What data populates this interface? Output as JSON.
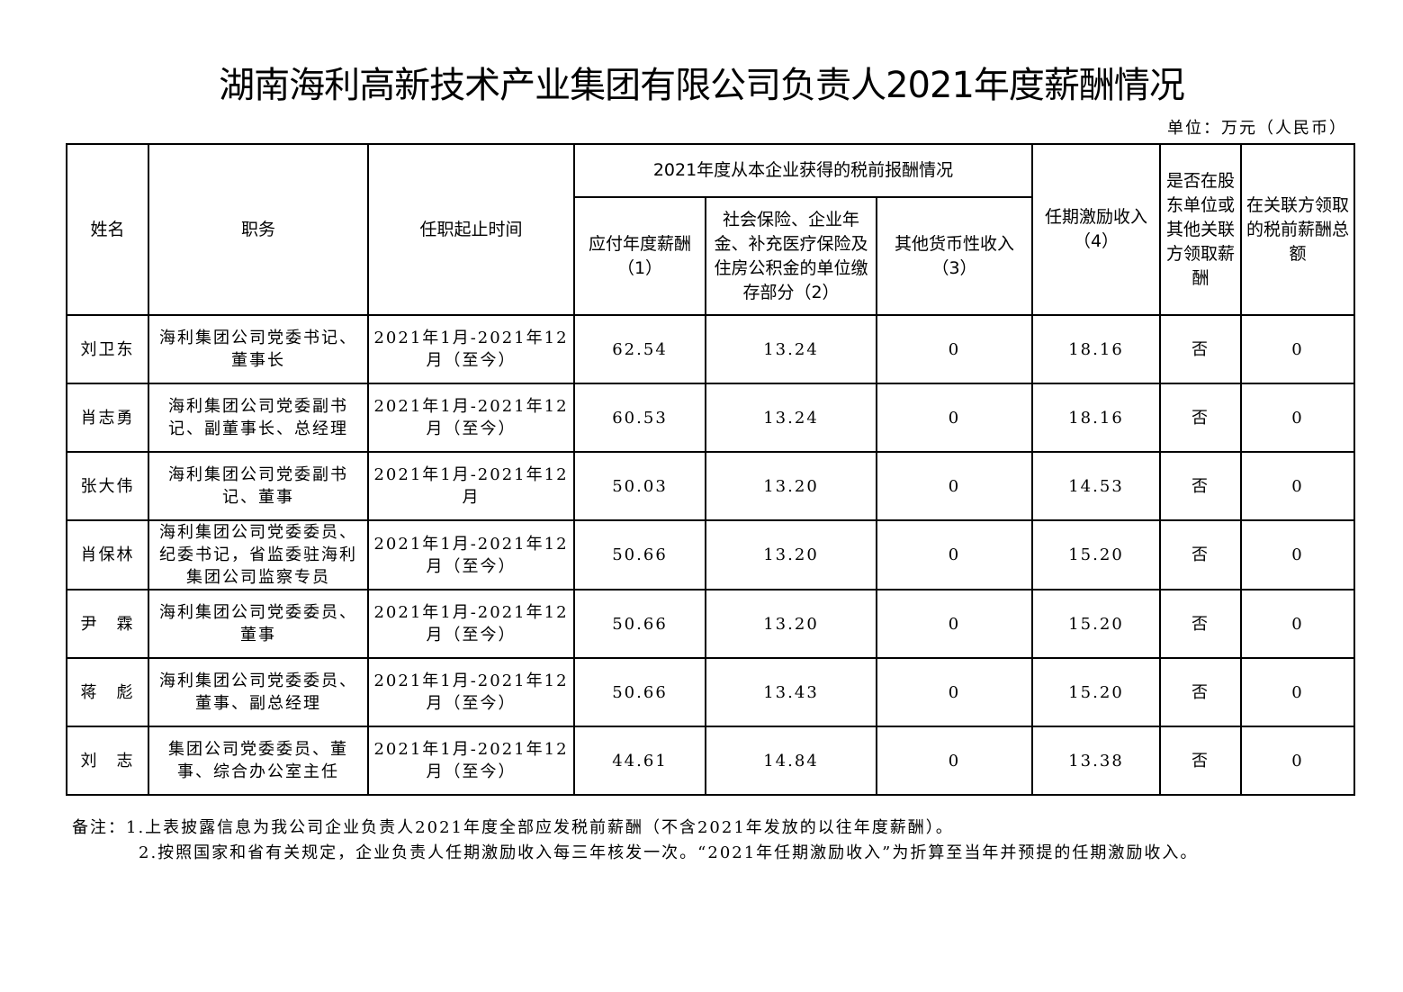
{
  "title": "湖南海利高新技术产业集团有限公司负责人2021年度薪酬情况",
  "unit": "单位：万元（人民币）",
  "headers": {
    "name": "姓名",
    "position": "职务",
    "term": "任职起止时间",
    "group": "2021年度从本企业获得的税前报酬情况",
    "salary": "应付年度薪酬（1）",
    "insurance": "社会保险、企业年金、补充医疗保险及住房公积金的单位缴存部分（2）",
    "other": "其他货币性收入（3）",
    "incentive": "任期激励收入（4）",
    "shareholder": "是否在股东单位或其他关联方领取薪酬",
    "related": "在关联方领取的税前薪酬总额"
  },
  "rows": [
    {
      "name": "刘卫东",
      "position": "海利集团公司党委书记、董事长",
      "term": "2021年1月-2021年12月（至今）",
      "salary": "62.54",
      "insurance": "13.24",
      "other": "0",
      "incentive": "18.16",
      "shareholder": "否",
      "related": "0"
    },
    {
      "name": "肖志勇",
      "position": "海利集团公司党委副书记、副董事长、总经理",
      "term": "2021年1月-2021年12月（至今）",
      "salary": "60.53",
      "insurance": "13.24",
      "other": "0",
      "incentive": "18.16",
      "shareholder": "否",
      "related": "0"
    },
    {
      "name": "张大伟",
      "position": "海利集团公司党委副书记、董事",
      "term": "2021年1月-2021年12月",
      "salary": "50.03",
      "insurance": "13.20",
      "other": "0",
      "incentive": "14.53",
      "shareholder": "否",
      "related": "0"
    },
    {
      "name": "肖保林",
      "position": "海利集团公司党委委员、纪委书记，省监委驻海利集团公司监察专员",
      "term": "2021年1月-2021年12月（至今）",
      "salary": "50.66",
      "insurance": "13.20",
      "other": "0",
      "incentive": "15.20",
      "shareholder": "否",
      "related": "0"
    },
    {
      "name": "尹　霖",
      "position": "海利集团公司党委委员、董事",
      "term": "2021年1月-2021年12月（至今）",
      "salary": "50.66",
      "insurance": "13.20",
      "other": "0",
      "incentive": "15.20",
      "shareholder": "否",
      "related": "0"
    },
    {
      "name": "蒋　彪",
      "position": "海利集团公司党委委员、董事、副总经理",
      "term": "2021年1月-2021年12月（至今）",
      "salary": "50.66",
      "insurance": "13.43",
      "other": "0",
      "incentive": "15.20",
      "shareholder": "否",
      "related": "0"
    },
    {
      "name": "刘　志",
      "position": "集团公司党委委员、董事、综合办公室主任",
      "term": "2021年1月-2021年12月（至今）",
      "salary": "44.61",
      "insurance": "14.84",
      "other": "0",
      "incentive": "13.38",
      "shareholder": "否",
      "related": "0"
    }
  ],
  "notes": {
    "label": "备注：",
    "items": [
      "1.上表披露信息为我公司企业负责人2021年度全部应发税前薪酬（不含2021年发放的以往年度薪酬）。",
      "2.按照国家和省有关规定，企业负责人任期激励收入每三年核发一次。“2021年任期激励收入”为折算至当年并预提的任期激励收入。"
    ]
  }
}
